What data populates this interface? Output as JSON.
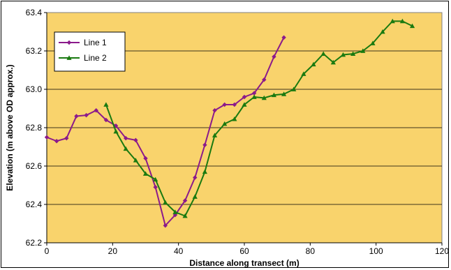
{
  "chart_data": {
    "type": "line",
    "title": "",
    "xlabel": "Distance along transect (m)",
    "ylabel": "Elevation (m above OD approx.)",
    "xlim": [
      0,
      120
    ],
    "ylim": [
      62.2,
      63.4
    ],
    "x_ticks": [
      "0",
      "20",
      "40",
      "60",
      "80",
      "100",
      "120"
    ],
    "y_ticks": [
      "62.2",
      "62.4",
      "62.6",
      "62.8",
      "63.0",
      "63.2",
      "63.4"
    ],
    "grid": "horizontal",
    "legend_position": "top-left",
    "plot_background": "#f9d36c",
    "series": [
      {
        "name": "Line 1",
        "color": "#8b1a8b",
        "marker": "diamond",
        "points": [
          [
            0,
            62.75
          ],
          [
            3,
            62.73
          ],
          [
            6,
            62.745
          ],
          [
            9,
            62.86
          ],
          [
            12,
            62.865
          ],
          [
            15,
            62.89
          ],
          [
            18,
            62.84
          ],
          [
            21,
            62.81
          ],
          [
            24,
            62.745
          ],
          [
            27,
            62.735
          ],
          [
            30,
            62.64
          ],
          [
            33,
            62.49
          ],
          [
            36,
            62.29
          ],
          [
            39,
            62.345
          ],
          [
            42,
            62.42
          ],
          [
            45,
            62.54
          ],
          [
            48,
            62.71
          ],
          [
            51,
            62.89
          ],
          [
            54,
            62.92
          ],
          [
            57,
            62.92
          ],
          [
            60,
            62.96
          ],
          [
            63,
            62.98
          ],
          [
            66,
            63.05
          ],
          [
            69,
            63.17
          ],
          [
            72,
            63.27
          ]
        ]
      },
      {
        "name": "Line 2",
        "color": "#1a7a10",
        "marker": "triangle",
        "points": [
          [
            18,
            62.92
          ],
          [
            21,
            62.78
          ],
          [
            24,
            62.69
          ],
          [
            27,
            62.63
          ],
          [
            30,
            62.56
          ],
          [
            33,
            62.53
          ],
          [
            36,
            62.41
          ],
          [
            39,
            62.36
          ],
          [
            42,
            62.34
          ],
          [
            45,
            62.44
          ],
          [
            48,
            62.57
          ],
          [
            51,
            62.76
          ],
          [
            54,
            62.82
          ],
          [
            57,
            62.845
          ],
          [
            60,
            62.92
          ],
          [
            63,
            62.96
          ],
          [
            66,
            62.955
          ],
          [
            69,
            62.97
          ],
          [
            72,
            62.975
          ],
          [
            75,
            63.0
          ],
          [
            78,
            63.08
          ],
          [
            81,
            63.13
          ],
          [
            84,
            63.185
          ],
          [
            87,
            63.14
          ],
          [
            90,
            63.18
          ],
          [
            93,
            63.185
          ],
          [
            96,
            63.2
          ],
          [
            99,
            63.24
          ],
          [
            102,
            63.3
          ],
          [
            105,
            63.355
          ],
          [
            108,
            63.355
          ],
          [
            111,
            63.33
          ]
        ]
      }
    ]
  }
}
